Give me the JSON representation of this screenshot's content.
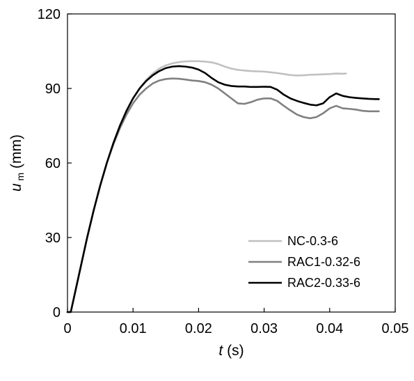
{
  "chart_data": {
    "type": "line",
    "title": "",
    "xlabel": {
      "main": "t",
      "unit": "(s)"
    },
    "ylabel": {
      "main": "u",
      "sub": "m",
      "unit": "(mm)"
    },
    "xlim": [
      0,
      0.05
    ],
    "ylim": [
      0,
      120
    ],
    "xticks": [
      0,
      0.01,
      0.02,
      0.03,
      0.04,
      0.05
    ],
    "yticks": [
      0,
      30,
      60,
      90,
      120
    ],
    "xtick_labels": [
      "0",
      "0.01",
      "0.02",
      "0.03",
      "0.04",
      "0.05"
    ],
    "ytick_labels": [
      "0",
      "30",
      "60",
      "90",
      "120"
    ],
    "grid": false,
    "legend_position": "bottom-right",
    "series": [
      {
        "name": "NC-0.3-6",
        "color": "#c0c0c0",
        "points": [
          [
            0,
            0
          ],
          [
            0.0005,
            0
          ],
          [
            0.001,
            6
          ],
          [
            0.002,
            18
          ],
          [
            0.003,
            30
          ],
          [
            0.004,
            41
          ],
          [
            0.005,
            51
          ],
          [
            0.006,
            60
          ],
          [
            0.007,
            68
          ],
          [
            0.008,
            75
          ],
          [
            0.009,
            81
          ],
          [
            0.01,
            86
          ],
          [
            0.011,
            90
          ],
          [
            0.012,
            93.5
          ],
          [
            0.013,
            96
          ],
          [
            0.014,
            98
          ],
          [
            0.015,
            99.3
          ],
          [
            0.016,
            100.1
          ],
          [
            0.017,
            100.6
          ],
          [
            0.018,
            100.9
          ],
          [
            0.019,
            101
          ],
          [
            0.02,
            101
          ],
          [
            0.021,
            100.8
          ],
          [
            0.022,
            100.5
          ],
          [
            0.023,
            99.8
          ],
          [
            0.024,
            98.8
          ],
          [
            0.025,
            98
          ],
          [
            0.026,
            97.5
          ],
          [
            0.027,
            97.2
          ],
          [
            0.028,
            97
          ],
          [
            0.029,
            96.9
          ],
          [
            0.03,
            96.8
          ],
          [
            0.031,
            96.5
          ],
          [
            0.032,
            96.2
          ],
          [
            0.033,
            95.8
          ],
          [
            0.034,
            95.4
          ],
          [
            0.035,
            95.2
          ],
          [
            0.036,
            95.3
          ],
          [
            0.037,
            95.5
          ],
          [
            0.038,
            95.6
          ],
          [
            0.039,
            95.7
          ],
          [
            0.04,
            95.8
          ],
          [
            0.041,
            96
          ],
          [
            0.042,
            95.9
          ],
          [
            0.0425,
            96
          ]
        ]
      },
      {
        "name": "RAC1-0.32-6",
        "color": "#808080",
        "points": [
          [
            0,
            0
          ],
          [
            0.0005,
            0
          ],
          [
            0.001,
            6
          ],
          [
            0.002,
            18
          ],
          [
            0.003,
            30
          ],
          [
            0.004,
            41
          ],
          [
            0.005,
            51
          ],
          [
            0.006,
            60
          ],
          [
            0.007,
            67.5
          ],
          [
            0.008,
            74
          ],
          [
            0.009,
            79.5
          ],
          [
            0.01,
            84
          ],
          [
            0.011,
            87.5
          ],
          [
            0.012,
            90
          ],
          [
            0.013,
            92
          ],
          [
            0.014,
            93.2
          ],
          [
            0.015,
            93.8
          ],
          [
            0.016,
            94
          ],
          [
            0.017,
            93.9
          ],
          [
            0.018,
            93.6
          ],
          [
            0.019,
            93.2
          ],
          [
            0.02,
            93
          ],
          [
            0.021,
            92.5
          ],
          [
            0.022,
            91.5
          ],
          [
            0.023,
            90
          ],
          [
            0.024,
            88
          ],
          [
            0.025,
            86
          ],
          [
            0.026,
            84
          ],
          [
            0.027,
            83.8
          ],
          [
            0.028,
            84.5
          ],
          [
            0.029,
            85.5
          ],
          [
            0.03,
            86
          ],
          [
            0.031,
            86
          ],
          [
            0.032,
            85
          ],
          [
            0.033,
            83
          ],
          [
            0.034,
            81.2
          ],
          [
            0.035,
            79.5
          ],
          [
            0.036,
            78.5
          ],
          [
            0.037,
            78
          ],
          [
            0.038,
            78.5
          ],
          [
            0.039,
            80
          ],
          [
            0.04,
            82
          ],
          [
            0.041,
            83
          ],
          [
            0.042,
            82
          ],
          [
            0.043,
            81.8
          ],
          [
            0.044,
            81.5
          ],
          [
            0.045,
            81
          ],
          [
            0.046,
            80.8
          ],
          [
            0.047,
            80.8
          ],
          [
            0.0475,
            80.8
          ]
        ]
      },
      {
        "name": "RAC2-0.33-6",
        "color": "#000000",
        "points": [
          [
            0,
            0
          ],
          [
            0.0005,
            0
          ],
          [
            0.001,
            6
          ],
          [
            0.002,
            18
          ],
          [
            0.003,
            30
          ],
          [
            0.004,
            41
          ],
          [
            0.005,
            51
          ],
          [
            0.006,
            60
          ],
          [
            0.007,
            68
          ],
          [
            0.008,
            75
          ],
          [
            0.009,
            81
          ],
          [
            0.01,
            86
          ],
          [
            0.011,
            90
          ],
          [
            0.012,
            93
          ],
          [
            0.013,
            95.3
          ],
          [
            0.014,
            97
          ],
          [
            0.015,
            98.2
          ],
          [
            0.016,
            98.8
          ],
          [
            0.017,
            99
          ],
          [
            0.018,
            98.8
          ],
          [
            0.019,
            98.4
          ],
          [
            0.02,
            97.6
          ],
          [
            0.021,
            96.2
          ],
          [
            0.022,
            94.2
          ],
          [
            0.023,
            92.5
          ],
          [
            0.024,
            91.5
          ],
          [
            0.025,
            91
          ],
          [
            0.026,
            90.8
          ],
          [
            0.027,
            90.8
          ],
          [
            0.028,
            90.6
          ],
          [
            0.029,
            90.6
          ],
          [
            0.03,
            90.7
          ],
          [
            0.031,
            90.6
          ],
          [
            0.032,
            89.5
          ],
          [
            0.033,
            87.5
          ],
          [
            0.034,
            86
          ],
          [
            0.035,
            85
          ],
          [
            0.036,
            84.2
          ],
          [
            0.037,
            83.5
          ],
          [
            0.038,
            83.2
          ],
          [
            0.039,
            84
          ],
          [
            0.04,
            86.5
          ],
          [
            0.041,
            88
          ],
          [
            0.042,
            87
          ],
          [
            0.043,
            86.5
          ],
          [
            0.044,
            86.2
          ],
          [
            0.045,
            86
          ],
          [
            0.046,
            85.8
          ],
          [
            0.047,
            85.7
          ],
          [
            0.0475,
            85.7
          ]
        ]
      }
    ]
  }
}
